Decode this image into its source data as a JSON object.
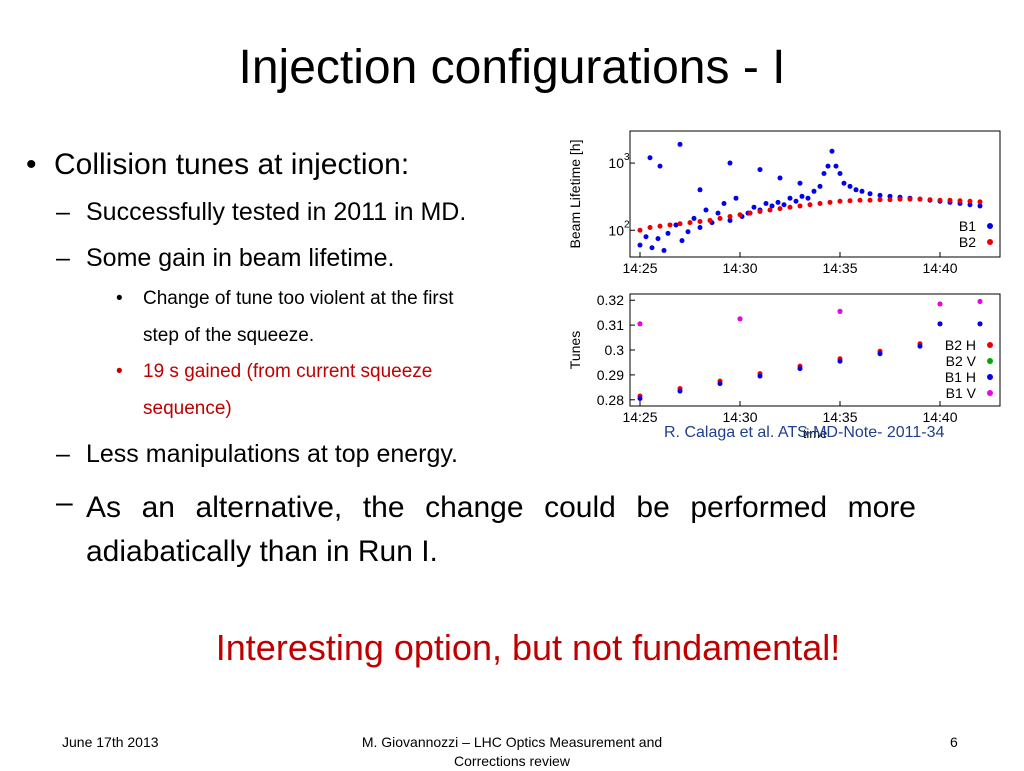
{
  "slide": {
    "title": "Injection configurations - I",
    "bullets": {
      "b1": "Collision tunes at injection:",
      "b2a": "Successfully tested in 2011 in MD.",
      "b2b": "Some gain in beam lifetime.",
      "b3a_line1": "Change of tune too violent at the first",
      "b3a_line2": "step of the squeeze.",
      "b3b_line1": "19 s gained (from current squeeze",
      "b3b_line2": "sequence)",
      "b2c": "Less manipulations at top energy.",
      "b2d": "As an alternative, the change could be performed more adiabatically than in Run I."
    },
    "highlight": "Interesting option, but not fundamental!",
    "caption": "R. Calaga et al. ATS-MD-Note- 2011-34",
    "footer": {
      "date": "June 17th 2013",
      "author_line1": "M. Giovannozzi – LHC Optics Measurement and",
      "author_line2": "Corrections review",
      "page": "6"
    },
    "dash": "–",
    "dot": "•",
    "colors": {
      "accent_red": "#c00000",
      "caption_blue": "#1f3f8f",
      "b1": "#0000ee",
      "b2": "#ee0000",
      "b2v": "#00aa00",
      "b1v": "#ee00ee"
    }
  },
  "chart_data": [
    {
      "type": "scatter",
      "ylabel": "Beam Lifetime [h]",
      "xticks": [
        "14:25",
        "14:30",
        "14:35",
        "14:40"
      ],
      "xticks_min": [
        25,
        30,
        35,
        40
      ],
      "xlim": [
        24.5,
        43
      ],
      "yscale": "log",
      "yticks": [
        "10",
        "10"
      ],
      "yticks_exp": [
        "3",
        "2"
      ],
      "yticks_val": [
        1000,
        100
      ],
      "ylim": [
        40,
        3000
      ],
      "legend": [
        {
          "name": "B1"
        },
        {
          "name": "B2"
        }
      ],
      "series": [
        {
          "name": "B1",
          "color": "#0000ee",
          "x": [
            25.0,
            25.3,
            25.6,
            25.9,
            26.2,
            26.4,
            26.8,
            27.1,
            27.4,
            27.7,
            28.0,
            28.3,
            28.6,
            28.9,
            29.2,
            29.5,
            29.8,
            30.1,
            30.4,
            30.7,
            31.0,
            31.3,
            31.6,
            31.9,
            32.2,
            32.5,
            32.8,
            33.1,
            33.4,
            33.7,
            34.0,
            34.2,
            34.4,
            34.6,
            34.8,
            35.0,
            35.2,
            35.5,
            35.8,
            36.1,
            36.5,
            37.0,
            37.5,
            38.0,
            38.5,
            39.0,
            39.5,
            40.0,
            40.5,
            41.0,
            41.5,
            42.0,
            25.5,
            26.0,
            27.0,
            28.0,
            29.5,
            30.5,
            31.0,
            32.0,
            33.0
          ],
          "y": [
            60,
            80,
            55,
            75,
            50,
            90,
            120,
            70,
            95,
            150,
            110,
            200,
            130,
            180,
            250,
            140,
            300,
            160,
            180,
            220,
            200,
            250,
            230,
            260,
            240,
            300,
            270,
            320,
            300,
            380,
            450,
            700,
            900,
            1500,
            900,
            700,
            500,
            450,
            400,
            380,
            350,
            330,
            320,
            310,
            300,
            290,
            280,
            270,
            260,
            250,
            240,
            230,
            1200,
            900,
            1900,
            400,
            1000,
            180,
            800,
            600,
            500
          ]
        },
        {
          "name": "B2",
          "color": "#ee0000",
          "x": [
            25.0,
            25.5,
            26.0,
            26.5,
            27.0,
            27.5,
            28.0,
            28.5,
            29.0,
            29.5,
            30.0,
            30.5,
            31.0,
            31.5,
            32.0,
            32.5,
            33.0,
            33.5,
            34.0,
            34.5,
            35.0,
            35.5,
            36.0,
            36.5,
            37.0,
            37.5,
            38.0,
            38.5,
            39.0,
            39.5,
            40.0,
            40.5,
            41.0,
            41.5,
            42.0
          ],
          "y": [
            100,
            110,
            115,
            120,
            125,
            130,
            135,
            140,
            150,
            160,
            170,
            180,
            190,
            200,
            210,
            220,
            230,
            240,
            250,
            260,
            270,
            275,
            280,
            280,
            285,
            285,
            290,
            290,
            290,
            285,
            280,
            280,
            275,
            270,
            265
          ]
        }
      ]
    },
    {
      "type": "scatter",
      "xlabel": "time",
      "ylabel": "Tunes",
      "xticks": [
        "14:25",
        "14:30",
        "14:35",
        "14:40"
      ],
      "xticks_min": [
        25,
        30,
        35,
        40
      ],
      "xlim": [
        24.5,
        43
      ],
      "yticks": [
        "0.32",
        "0.31",
        "0.3",
        "0.29",
        "0.28"
      ],
      "yticks_val": [
        0.32,
        0.31,
        0.3,
        0.29,
        0.28
      ],
      "ylim": [
        0.2775,
        0.3225
      ],
      "legend": [
        {
          "name": "B2 H"
        },
        {
          "name": "B2 V"
        },
        {
          "name": "B1 H"
        },
        {
          "name": "B1 V"
        }
      ],
      "series": [
        {
          "name": "B2 H",
          "color": "#ee0000",
          "x": [
            25,
            27,
            29,
            31,
            33,
            35,
            37,
            39,
            40,
            42
          ],
          "y": [
            0.2815,
            0.2845,
            0.2875,
            0.2905,
            0.2935,
            0.2965,
            0.2995,
            0.3025,
            0.3105,
            0.3105
          ]
        },
        {
          "name": "B2 V",
          "color": "#00aa00",
          "x": [
            25,
            30,
            35,
            40,
            42
          ],
          "y": [
            0.3105,
            0.3125,
            0.3155,
            0.3185,
            0.3195
          ]
        },
        {
          "name": "B1 H",
          "color": "#0000ee",
          "x": [
            25,
            27,
            29,
            31,
            33,
            35,
            37,
            39,
            40,
            42
          ],
          "y": [
            0.2805,
            0.2835,
            0.2865,
            0.2895,
            0.2925,
            0.2955,
            0.2985,
            0.3015,
            0.3105,
            0.3105
          ]
        },
        {
          "name": "B1 V",
          "color": "#ee00ee",
          "x": [
            25,
            30,
            35,
            40,
            42
          ],
          "y": [
            0.3105,
            0.3125,
            0.3155,
            0.3185,
            0.3195
          ]
        }
      ]
    }
  ]
}
